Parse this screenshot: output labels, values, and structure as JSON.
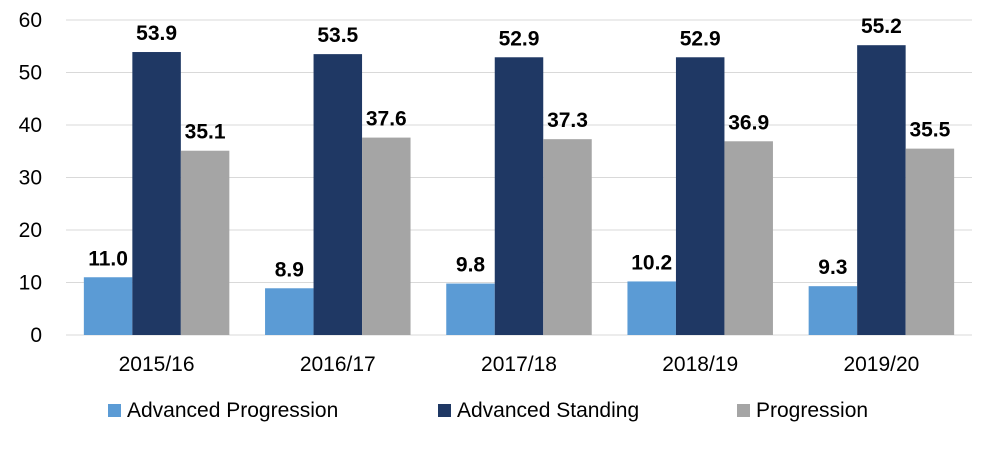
{
  "chart_data": {
    "type": "bar",
    "title": "",
    "xlabel": "",
    "ylabel": "",
    "ylim": [
      0,
      60
    ],
    "yticks": [
      0,
      10,
      20,
      30,
      40,
      50,
      60
    ],
    "grid": true,
    "legend_position": "bottom",
    "categories": [
      "2015/16",
      "2016/17",
      "2017/18",
      "2018/19",
      "2019/20"
    ],
    "series": [
      {
        "name": "Advanced Progression",
        "color": "#5b9bd5",
        "values": [
          11.0,
          8.9,
          9.8,
          10.2,
          9.3
        ]
      },
      {
        "name": "Advanced Standing",
        "color": "#1f3864",
        "values": [
          53.9,
          53.5,
          52.9,
          52.9,
          55.2
        ]
      },
      {
        "name": "Progression",
        "color": "#a5a5a5",
        "values": [
          35.1,
          37.6,
          37.3,
          36.9,
          35.5
        ]
      }
    ]
  }
}
